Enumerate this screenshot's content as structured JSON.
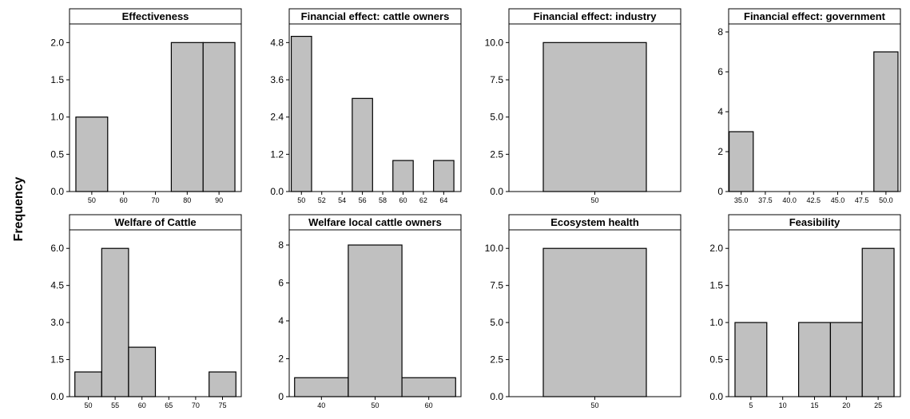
{
  "ylabel": "Frequency",
  "chart_data": [
    {
      "type": "bar",
      "title": "Effectiveness",
      "xlim": [
        43,
        97
      ],
      "ylim": [
        0,
        2.25
      ],
      "yticks": [
        0.0,
        0.5,
        1.0,
        1.5,
        2.0
      ],
      "ytick_labels": [
        "0.0",
        "0.5",
        "1.0",
        "1.5",
        "2.0"
      ],
      "xticks": [
        50,
        60,
        70,
        80,
        90
      ],
      "xtick_labels": [
        "50",
        "60",
        "70",
        "80",
        "90"
      ],
      "bins": [
        [
          45,
          55
        ],
        [
          55,
          65
        ],
        [
          65,
          75
        ],
        [
          75,
          85
        ],
        [
          85,
          95
        ]
      ],
      "values": [
        1,
        0,
        0,
        2,
        2
      ]
    },
    {
      "type": "bar",
      "title": "Financial effect: cattle owners",
      "xlim": [
        48.8,
        65.7
      ],
      "ylim": [
        0,
        5.4
      ],
      "yticks": [
        0.0,
        1.2,
        2.4,
        3.6,
        4.8
      ],
      "ytick_labels": [
        "0.0",
        "1.2",
        "2.4",
        "3.6",
        "4.8"
      ],
      "xticks": [
        50,
        52,
        54,
        56,
        58,
        60,
        62,
        64
      ],
      "xtick_labels": [
        "50",
        "52",
        "54",
        "56",
        "58",
        "60",
        "62",
        "64"
      ],
      "bins": [
        [
          49,
          51
        ],
        [
          51,
          53
        ],
        [
          53,
          55
        ],
        [
          55,
          57
        ],
        [
          57,
          59
        ],
        [
          59,
          61
        ],
        [
          61,
          63
        ],
        [
          63,
          65
        ]
      ],
      "values": [
        5,
        0,
        0,
        3,
        0,
        1,
        0,
        1
      ]
    },
    {
      "type": "bar",
      "title": "Financial effect: industry",
      "xlim": [
        0,
        1
      ],
      "ylim": [
        0,
        11.25
      ],
      "yticks": [
        0.0,
        2.5,
        5.0,
        7.5,
        10.0
      ],
      "ytick_labels": [
        "0.0",
        "2.5",
        "5.0",
        "7.5",
        "10.0"
      ],
      "xticks": [
        0.5
      ],
      "xtick_labels": [
        "50"
      ],
      "bins": [
        [
          0.2,
          0.8
        ]
      ],
      "values": [
        10
      ]
    },
    {
      "type": "bar",
      "title": "Financial  effect: government",
      "xlim": [
        33.7,
        51.5
      ],
      "ylim": [
        0,
        8.4
      ],
      "yticks": [
        0,
        2,
        4,
        6,
        8
      ],
      "ytick_labels": [
        "0",
        "2",
        "4",
        "6",
        "8"
      ],
      "xticks": [
        35.0,
        37.5,
        40.0,
        42.5,
        45.0,
        47.5,
        50.0
      ],
      "xtick_labels": [
        "35.0",
        "37.5",
        "40.0",
        "42.5",
        "45.0",
        "47.5",
        "50.0"
      ],
      "bins": [
        [
          33.75,
          36.25
        ],
        [
          36.25,
          38.75
        ],
        [
          38.75,
          41.25
        ],
        [
          41.25,
          43.75
        ],
        [
          43.75,
          46.25
        ],
        [
          46.25,
          48.75
        ],
        [
          48.75,
          51.25
        ]
      ],
      "values": [
        3,
        0,
        0,
        0,
        0,
        0,
        7
      ]
    },
    {
      "type": "bar",
      "title": "Welfare of Cattle",
      "xlim": [
        46.5,
        78.5
      ],
      "ylim": [
        0,
        6.75
      ],
      "yticks": [
        0.0,
        1.5,
        3.0,
        4.5,
        6.0
      ],
      "ytick_labels": [
        "0.0",
        "1.5",
        "3.0",
        "4.5",
        "6.0"
      ],
      "xticks": [
        50,
        55,
        60,
        65,
        70,
        75
      ],
      "xtick_labels": [
        "50",
        "55",
        "60",
        "65",
        "70",
        "75"
      ],
      "bins": [
        [
          47.5,
          52.5
        ],
        [
          52.5,
          57.5
        ],
        [
          57.5,
          62.5
        ],
        [
          62.5,
          67.5
        ],
        [
          67.5,
          72.5
        ],
        [
          72.5,
          77.5
        ]
      ],
      "values": [
        1,
        6,
        2,
        0,
        0,
        1
      ]
    },
    {
      "type": "bar",
      "title": "Welfare local cattle owners",
      "xlim": [
        34,
        66
      ],
      "ylim": [
        0,
        8.8
      ],
      "yticks": [
        0,
        2,
        4,
        6,
        8
      ],
      "ytick_labels": [
        "0",
        "2",
        "4",
        "6",
        "8"
      ],
      "xticks": [
        40,
        50,
        60
      ],
      "xtick_labels": [
        "40",
        "50",
        "60"
      ],
      "bins": [
        [
          35,
          45
        ],
        [
          45,
          55
        ],
        [
          55,
          65
        ]
      ],
      "values": [
        1,
        8,
        1
      ]
    },
    {
      "type": "bar",
      "title": "Ecosystem health",
      "xlim": [
        0,
        1
      ],
      "ylim": [
        0,
        11.25
      ],
      "yticks": [
        0.0,
        2.5,
        5.0,
        7.5,
        10.0
      ],
      "ytick_labels": [
        "0.0",
        "2.5",
        "5.0",
        "7.5",
        "10.0"
      ],
      "xticks": [
        0.5
      ],
      "xtick_labels": [
        "50"
      ],
      "bins": [
        [
          0.2,
          0.8
        ]
      ],
      "values": [
        10
      ]
    },
    {
      "type": "bar",
      "title": "Feasibility",
      "xlim": [
        1.5,
        28.5
      ],
      "ylim": [
        0,
        2.25
      ],
      "yticks": [
        0.0,
        0.5,
        1.0,
        1.5,
        2.0
      ],
      "ytick_labels": [
        "0.0",
        "0.5",
        "1.0",
        "1.5",
        "2.0"
      ],
      "xticks": [
        5,
        10,
        15,
        20,
        25
      ],
      "xtick_labels": [
        "5",
        "10",
        "15",
        "20",
        "25"
      ],
      "bins": [
        [
          2.5,
          7.5
        ],
        [
          7.5,
          12.5
        ],
        [
          12.5,
          17.5
        ],
        [
          17.5,
          22.5
        ],
        [
          22.5,
          27.5
        ]
      ],
      "values": [
        1,
        0,
        1,
        1,
        2
      ]
    }
  ]
}
